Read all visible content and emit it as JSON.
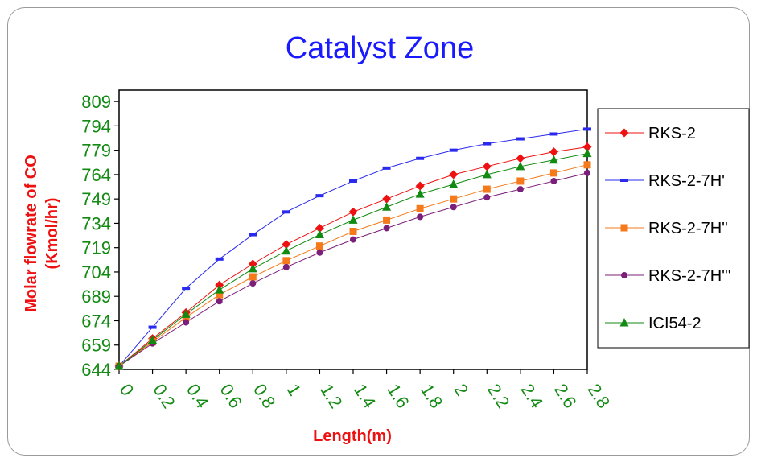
{
  "chart_data": {
    "type": "line",
    "title": "Catalyst Zone",
    "xlabel": "Length(m)",
    "ylabel": [
      "Molar flowrate of CO",
      "(Kmol/hr)"
    ],
    "x": [
      0,
      0.2,
      0.4,
      0.6,
      0.8,
      1,
      1.2,
      1.4,
      1.6,
      1.8,
      2,
      2.2,
      2.4,
      2.6,
      2.8
    ],
    "x_tick_labels": [
      "0",
      "0.2",
      "0.4",
      "0.6",
      "0.8",
      "1",
      "1.2",
      "1.4",
      "1.6",
      "1.8",
      "2",
      "2.2",
      "2.4",
      "2.6",
      "2.8"
    ],
    "y_ticks": [
      644,
      659,
      674,
      689,
      704,
      719,
      734,
      749,
      764,
      779,
      794,
      809
    ],
    "ylim": [
      644,
      816
    ],
    "grid": false,
    "legend_position": "right",
    "series": [
      {
        "name": "RKS-2",
        "color": "#ee1111",
        "marker": "diamond",
        "values": [
          646,
          663,
          679,
          696,
          709,
          721,
          731,
          741,
          749,
          757,
          764,
          769,
          774,
          778,
          781
        ]
      },
      {
        "name": "RKS-2-7H'",
        "color": "#2a2aee",
        "marker": "dash",
        "values": [
          646,
          670,
          694,
          712,
          727,
          741,
          751,
          760,
          768,
          774,
          779,
          783,
          786,
          789,
          792
        ]
      },
      {
        "name": "RKS-2-7H''",
        "color": "#f47a1c",
        "marker": "square",
        "values": [
          646,
          661,
          676,
          690,
          701,
          711,
          720,
          729,
          736,
          743,
          749,
          755,
          760,
          765,
          770
        ]
      },
      {
        "name": "RKS-2-7H'''",
        "color": "#7a1f7a",
        "marker": "circle",
        "values": [
          646,
          660,
          673,
          686,
          697,
          707,
          716,
          724,
          731,
          738,
          744,
          750,
          755,
          760,
          765
        ]
      },
      {
        "name": "ICI54-2",
        "color": "#108a10",
        "marker": "triangle",
        "values": [
          646,
          662,
          678,
          693,
          706,
          717,
          727,
          736,
          744,
          752,
          758,
          764,
          769,
          773,
          777
        ]
      }
    ]
  }
}
